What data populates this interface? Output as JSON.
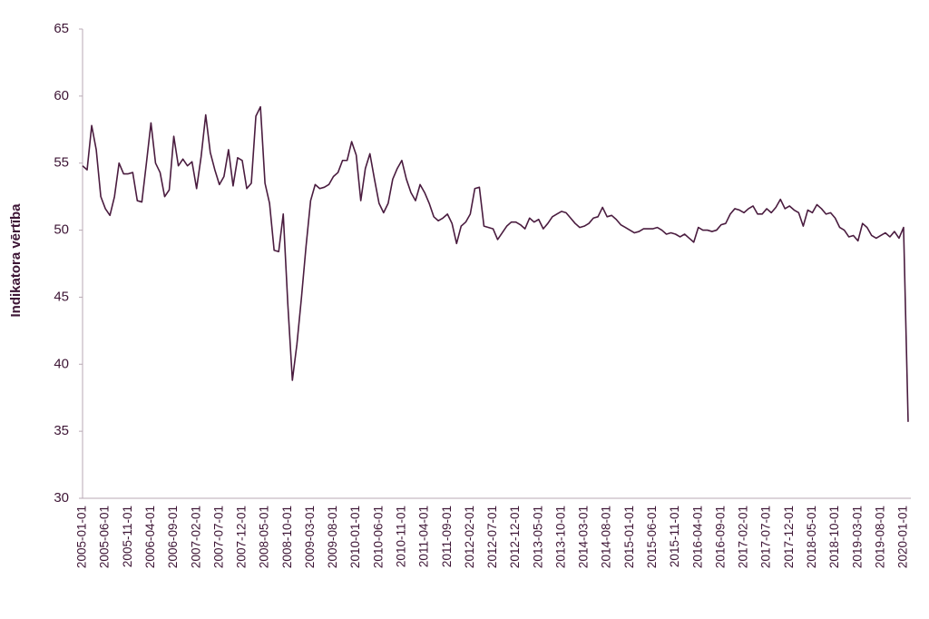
{
  "chart_data": {
    "type": "line",
    "y_label": "Indikatora vērtība",
    "color": "#4a1c3f",
    "ylim": [
      30,
      65
    ],
    "yticks": [
      30,
      35,
      40,
      45,
      50,
      55,
      60,
      65
    ],
    "grid": false,
    "categories": [
      "2005-01-01",
      null,
      null,
      null,
      null,
      "2005-06-01",
      null,
      null,
      null,
      null,
      "2005-11-01",
      null,
      null,
      null,
      null,
      "2006-04-01",
      null,
      null,
      null,
      null,
      "2006-09-01",
      null,
      null,
      null,
      null,
      "2007-02-01",
      null,
      null,
      null,
      null,
      "2007-07-01",
      null,
      null,
      null,
      null,
      "2007-12-01",
      null,
      null,
      null,
      null,
      "2008-05-01",
      null,
      null,
      null,
      null,
      "2008-10-01",
      null,
      null,
      null,
      null,
      "2009-03-01",
      null,
      null,
      null,
      null,
      "2009-08-01",
      null,
      null,
      null,
      null,
      "2010-01-01",
      null,
      null,
      null,
      null,
      "2010-06-01",
      null,
      null,
      null,
      null,
      "2010-11-01",
      null,
      null,
      null,
      null,
      "2011-04-01",
      null,
      null,
      null,
      null,
      "2011-09-01",
      null,
      null,
      null,
      null,
      "2012-02-01",
      null,
      null,
      null,
      null,
      "2012-07-01",
      null,
      null,
      null,
      null,
      "2012-12-01",
      null,
      null,
      null,
      null,
      "2013-05-01",
      null,
      null,
      null,
      null,
      "2013-10-01",
      null,
      null,
      null,
      null,
      "2014-03-01",
      null,
      null,
      null,
      null,
      "2014-08-01",
      null,
      null,
      null,
      null,
      "2015-01-01",
      null,
      null,
      null,
      null,
      "2015-06-01",
      null,
      null,
      null,
      null,
      "2015-11-01",
      null,
      null,
      null,
      null,
      "2016-04-01",
      null,
      null,
      null,
      null,
      "2016-09-01",
      null,
      null,
      null,
      null,
      "2017-02-01",
      null,
      null,
      null,
      null,
      "2017-07-01",
      null,
      null,
      null,
      null,
      "2017-12-01",
      null,
      null,
      null,
      null,
      "2018-05-01",
      null,
      null,
      null,
      null,
      "2018-10-01",
      null,
      null,
      null,
      null,
      "2019-03-01",
      null,
      null,
      null,
      null,
      "2019-08-01",
      null,
      null,
      null,
      null,
      "2020-01-01",
      null
    ],
    "values": [
      54.8,
      54.5,
      57.8,
      56.0,
      52.5,
      51.6,
      51.1,
      52.5,
      55.0,
      54.2,
      54.2,
      54.3,
      52.2,
      52.1,
      55.0,
      58.0,
      55.0,
      54.3,
      52.5,
      53.0,
      57.0,
      54.8,
      55.3,
      54.8,
      55.1,
      53.1,
      55.5,
      58.6,
      55.8,
      54.5,
      53.4,
      54.0,
      56.0,
      53.3,
      55.4,
      55.2,
      53.1,
      53.5,
      58.5,
      59.2,
      53.5,
      52.0,
      48.5,
      48.4,
      51.2,
      44.5,
      38.8,
      41.5,
      45.0,
      48.8,
      52.2,
      53.4,
      53.1,
      53.2,
      53.4,
      54.0,
      54.3,
      55.2,
      55.2,
      56.6,
      55.6,
      52.2,
      54.6,
      55.7,
      53.8,
      52.0,
      51.3,
      52.0,
      53.8,
      54.6,
      55.2,
      53.8,
      52.8,
      52.2,
      53.4,
      52.8,
      52.0,
      51.0,
      50.7,
      50.9,
      51.2,
      50.5,
      49.0,
      50.3,
      50.6,
      51.2,
      53.1,
      53.2,
      50.3,
      50.2,
      50.1,
      49.3,
      49.8,
      50.3,
      50.6,
      50.6,
      50.4,
      50.1,
      50.9,
      50.6,
      50.8,
      50.1,
      50.5,
      51.0,
      51.2,
      51.4,
      51.3,
      50.9,
      50.5,
      50.2,
      50.3,
      50.5,
      50.9,
      51.0,
      51.7,
      51.0,
      51.1,
      50.8,
      50.4,
      50.2,
      50.0,
      49.8,
      49.9,
      50.1,
      50.1,
      50.1,
      50.2,
      50.0,
      49.7,
      49.8,
      49.7,
      49.5,
      49.7,
      49.4,
      49.1,
      50.2,
      50.0,
      50.0,
      49.9,
      50.0,
      50.4,
      50.5,
      51.2,
      51.6,
      51.5,
      51.3,
      51.6,
      51.8,
      51.2,
      51.2,
      51.6,
      51.3,
      51.7,
      52.3,
      51.6,
      51.8,
      51.5,
      51.3,
      50.3,
      51.5,
      51.3,
      51.9,
      51.6,
      51.2,
      51.3,
      50.9,
      50.2,
      50.0,
      49.5,
      49.6,
      49.2,
      50.5,
      50.2,
      49.6,
      49.4,
      49.6,
      49.8,
      49.5,
      49.9,
      49.4,
      50.2,
      35.7
    ]
  }
}
